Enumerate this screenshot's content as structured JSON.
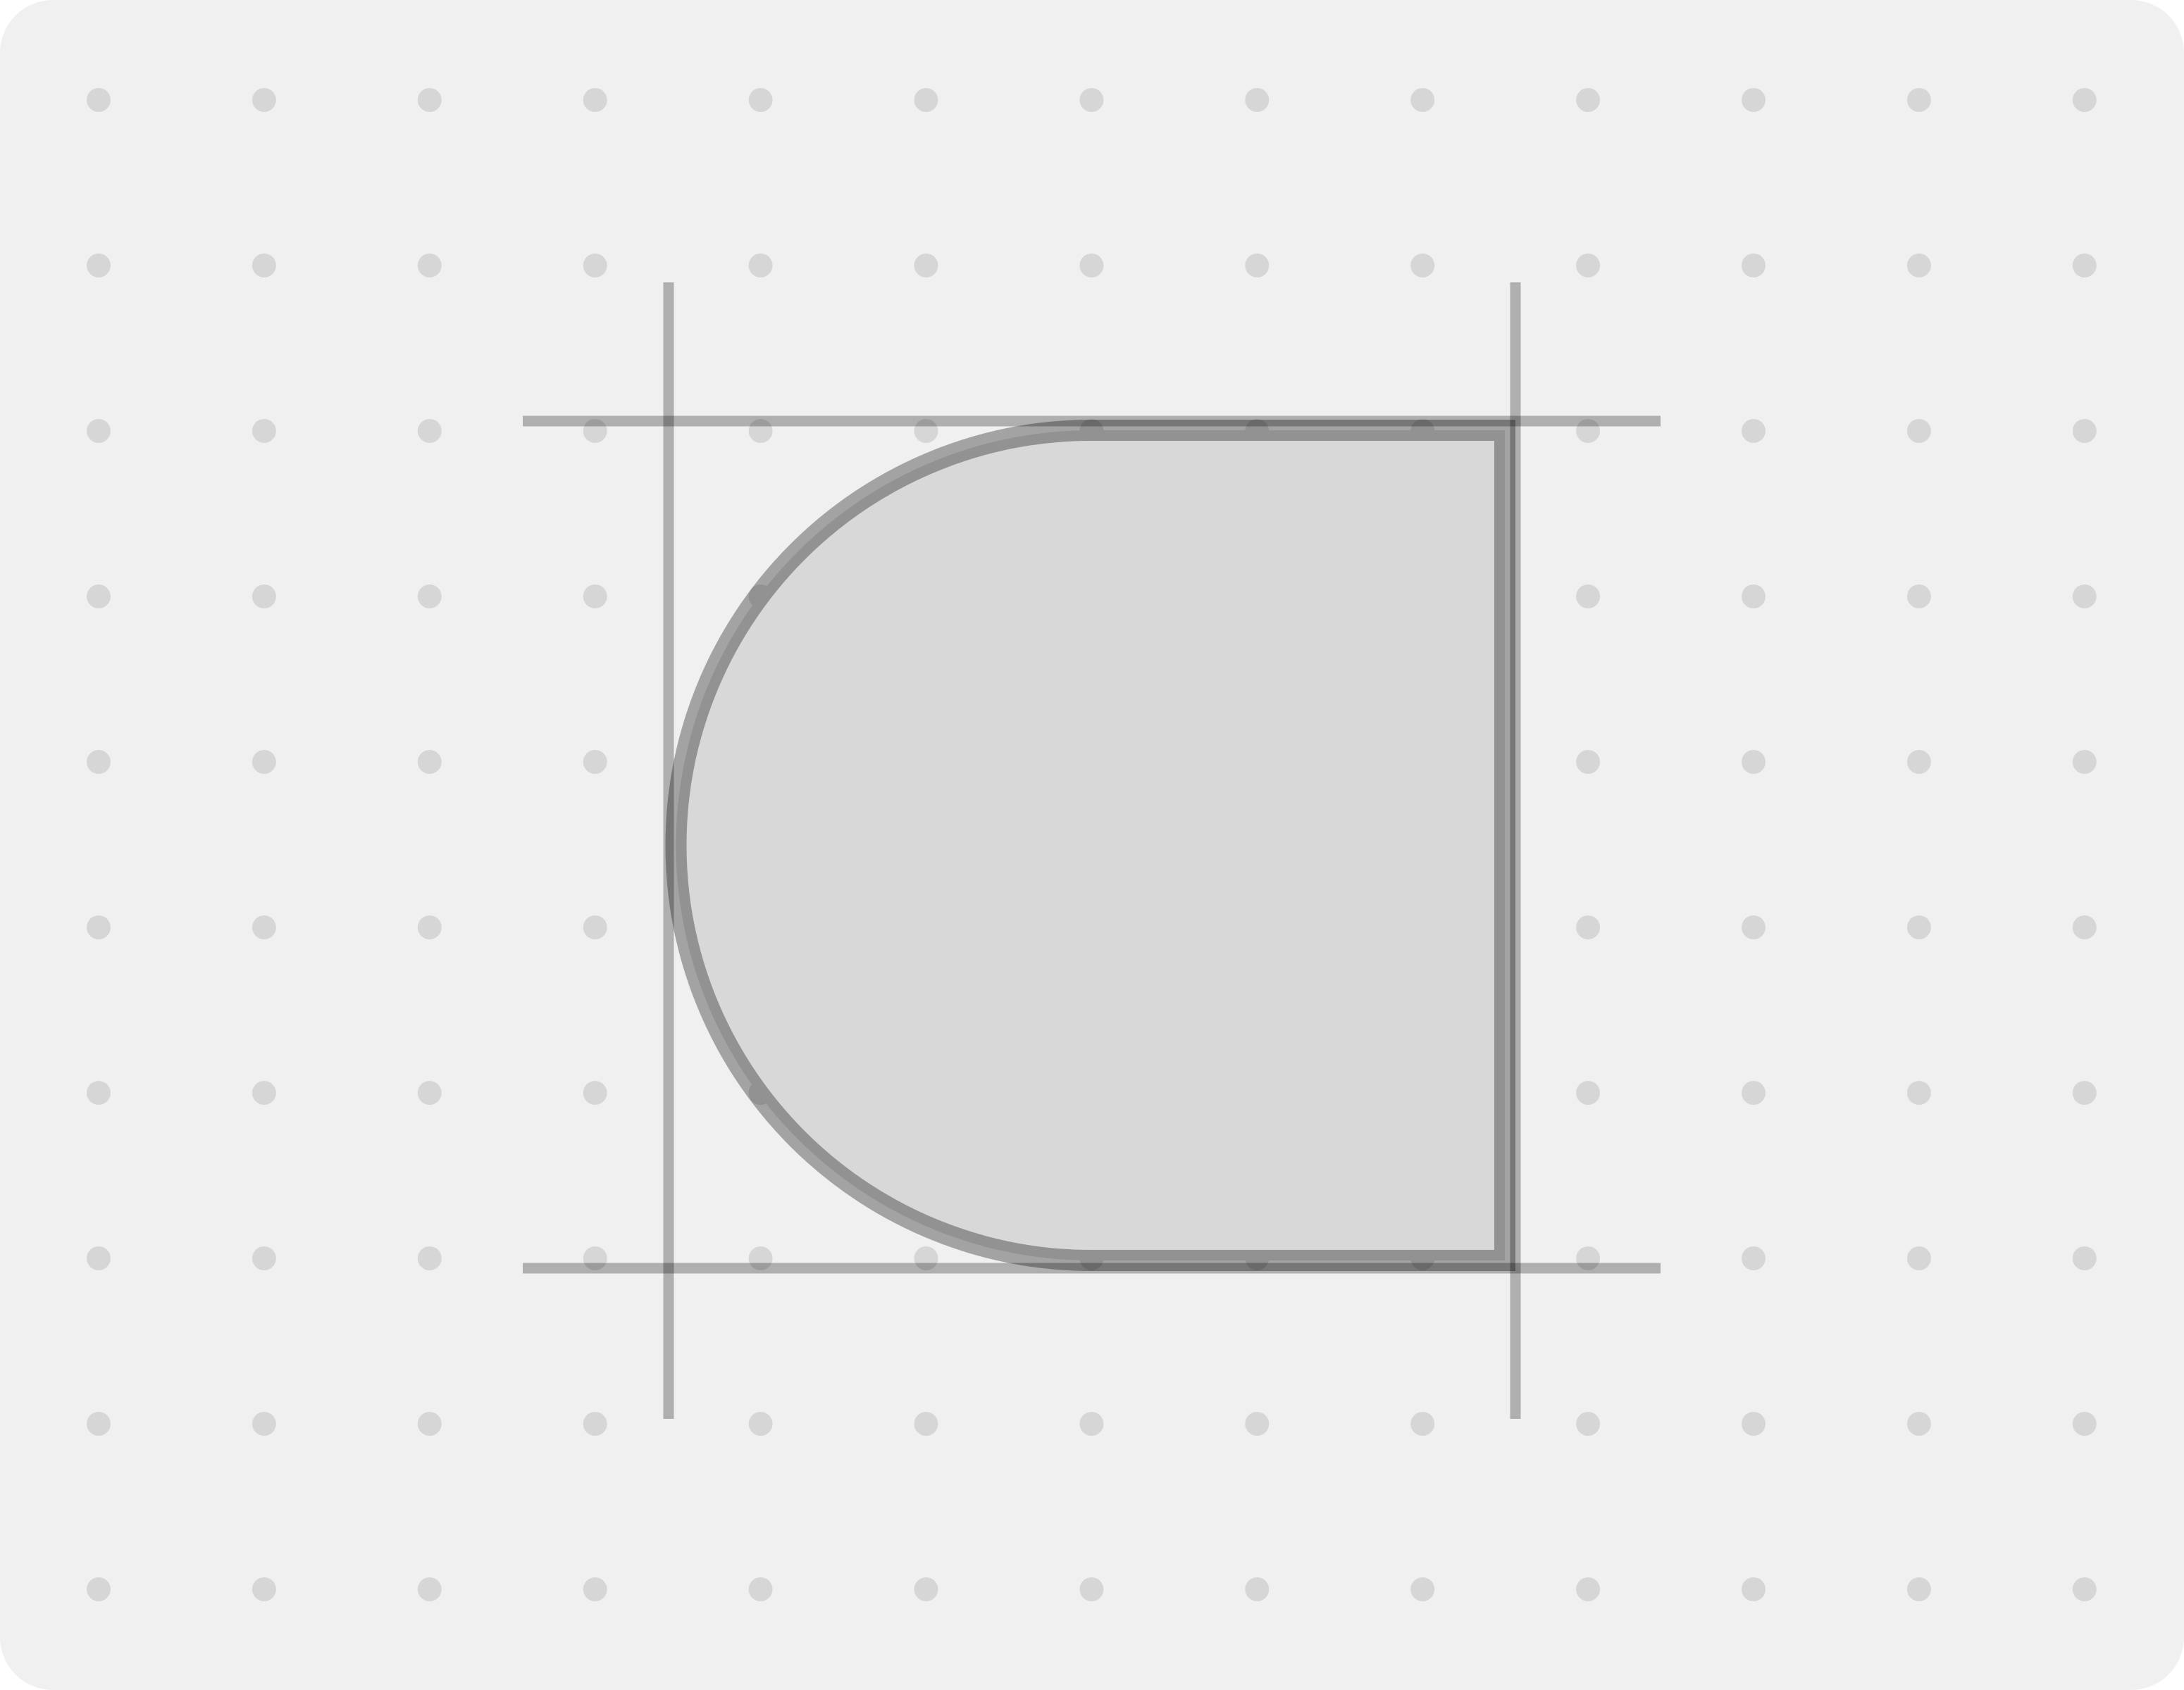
{
  "canvas": {
    "background_color": "#f0f0f0",
    "corner_style": "rounded"
  },
  "dot_grid": {
    "columns": 13,
    "rows": 10,
    "dot_color": "#d6d6d6"
  },
  "shape": {
    "kind": "rounded-left rectangle (D-shape)",
    "fill_color": "#d8d8d8",
    "stroke_color": "#000000",
    "stroke_opacity": 0.32
  },
  "guides": {
    "count": 4,
    "color": "#000000",
    "opacity": 0.27
  }
}
